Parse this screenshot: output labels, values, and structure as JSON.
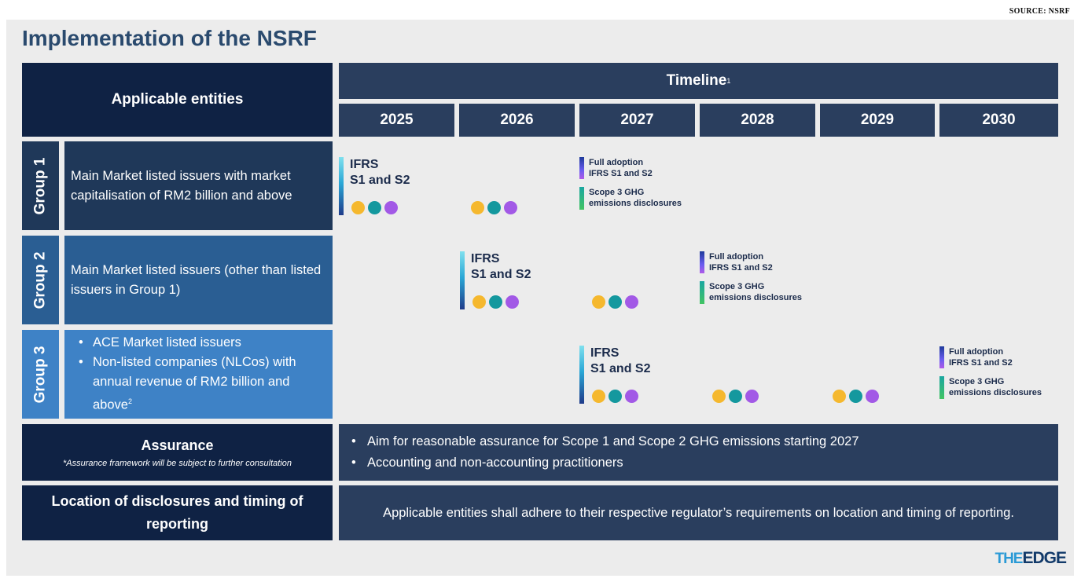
{
  "source": "SOURCE: NSRF",
  "title": "Implementation of the NSRF",
  "header": {
    "entities": "Applicable entities",
    "timeline": "Timeline",
    "timeline_note": "1",
    "years": [
      "2025",
      "2026",
      "2027",
      "2028",
      "2029",
      "2030"
    ]
  },
  "groups": [
    {
      "label": "Group 1",
      "desc": "Main Market listed issuers with market capitalisation of RM2 billion and above"
    },
    {
      "label": "Group 2",
      "desc": "Main Market listed issuers (other than listed issuers in Group 1)"
    },
    {
      "label": "Group 3",
      "bullets": [
        "ACE Market listed issuers",
        "Non-listed companies (NLCos) with annual revenue of RM2 billion and above"
      ],
      "note": "2"
    }
  ],
  "milestones": {
    "ifrs_line1": "IFRS",
    "ifrs_line2": "S1 and S2",
    "full_line1": "Full adoption",
    "full_line2": "IFRS S1 and S2",
    "scope_line1": "Scope 3 GHG",
    "scope_line2": "emissions disclosures"
  },
  "assurance": {
    "title": "Assurance",
    "note": "*Assurance framework will be subject to further consultation",
    "bullets": [
      "Aim for reasonable assurance for Scope 1 and Scope 2 GHG emissions starting 2027",
      "Accounting and non-accounting practitioners"
    ]
  },
  "location": {
    "title_line1": "Location of disclosures and timing of",
    "title_line2": "reporting",
    "text": "Applicable entities shall adhere to their respective regulator’s requirements on location and timing of reporting."
  },
  "logo": {
    "the": "THE",
    "edge": "EDGE"
  },
  "colors": {
    "navy": "#0f2244",
    "slate": "#2a3e5e",
    "group1": "#1f3859",
    "group2": "#2a5e93",
    "group3": "#3e82c6",
    "dot_yellow": "#f5b82e",
    "dot_teal": "#14989e",
    "dot_purple": "#a259e6"
  }
}
